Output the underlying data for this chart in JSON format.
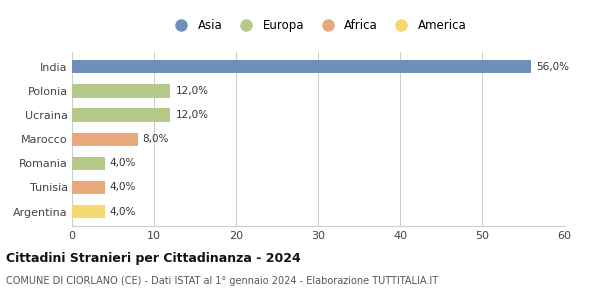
{
  "categories": [
    "India",
    "Polonia",
    "Ucraina",
    "Marocco",
    "Romania",
    "Tunisia",
    "Argentina"
  ],
  "values": [
    56.0,
    12.0,
    12.0,
    8.0,
    4.0,
    4.0,
    4.0
  ],
  "bar_colors": [
    "#7090ba",
    "#b5c98a",
    "#b5c98a",
    "#e8a87a",
    "#b5c98a",
    "#e8a87a",
    "#f5d870"
  ],
  "labels": [
    "56,0%",
    "12,0%",
    "12,0%",
    "8,0%",
    "4,0%",
    "4,0%",
    "4,0%"
  ],
  "legend_entries": [
    {
      "label": "Asia",
      "color": "#7090ba"
    },
    {
      "label": "Europa",
      "color": "#b5c98a"
    },
    {
      "label": "Africa",
      "color": "#e8a87a"
    },
    {
      "label": "America",
      "color": "#f5d870"
    }
  ],
  "xlim": [
    0,
    60
  ],
  "xticks": [
    0,
    10,
    20,
    30,
    40,
    50,
    60
  ],
  "title": "Cittadini Stranieri per Cittadinanza - 2024",
  "subtitle": "COMUNE DI CIORLANO (CE) - Dati ISTAT al 1° gennaio 2024 - Elaborazione TUTTITALIA.IT",
  "background_color": "#ffffff",
  "grid_color": "#cccccc",
  "bar_height": 0.55
}
